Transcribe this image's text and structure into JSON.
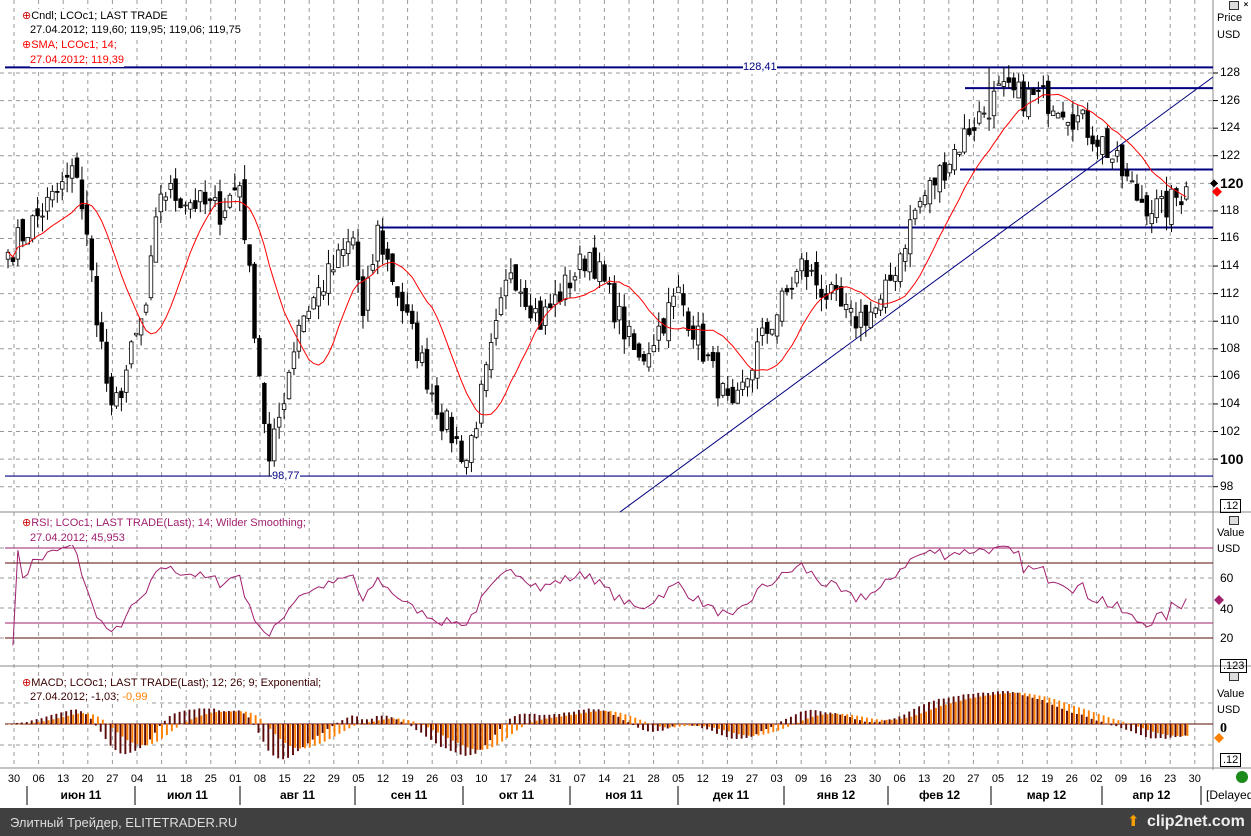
{
  "legend": {
    "candle_title": "Cndl; LCOc1; LAST TRADE",
    "candle_values": "27.04.2012; 119,60; 119,95; 119,06; 119,75",
    "sma_title": "SMA; LCOc1;  14;",
    "sma_values": "27.04.2012; 119,39",
    "rsi_title": "RSI; LCOc1; LAST TRADE(Last);  14; Wilder Smoothing;",
    "rsi_values": "27.04.2012; 45,953",
    "macd_title": "MACD; LCOc1; LAST TRADE(Last);  12; 26; 9; Exponential;",
    "macd_values": "27.04.2012; -1,03; ",
    "macd_signal": "-0,99"
  },
  "axis": {
    "price_label": "Price",
    "currency": "USD",
    "value_label": "Value",
    "price_ticks": [
      "128",
      "126",
      "124",
      "122",
      "120",
      "118",
      "116",
      "114",
      "112",
      "110",
      "108",
      "106",
      "104",
      "102",
      "100",
      "98"
    ],
    "rsi_ticks": [
      "60",
      "40",
      "20"
    ],
    "macd_tick": "0",
    "price_box": ".12",
    "rsi_box": ".123",
    "macd_box": ".12",
    "delayed": "[Delayed"
  },
  "levels": {
    "high_label": "128,41",
    "low_label": "98,77",
    "high": 128.41,
    "low": 98.77,
    "resist1": 126.9,
    "support1": 121.0,
    "support2": 116.8
  },
  "days": [
    "30",
    "06",
    "13",
    "20",
    "27",
    "04",
    "11",
    "18",
    "25",
    "01",
    "08",
    "15",
    "22",
    "29",
    "05",
    "12",
    "19",
    "26",
    "03",
    "10",
    "17",
    "24",
    "31",
    "07",
    "14",
    "21",
    "28",
    "05",
    "12",
    "19",
    "27",
    "03",
    "09",
    "16",
    "23",
    "30",
    "06",
    "13",
    "20",
    "27",
    "05",
    "12",
    "19",
    "26",
    "02",
    "09",
    "16",
    "23",
    "30"
  ],
  "months": [
    "июн 11",
    "июл 11",
    "авг 11",
    "сен 11",
    "окт 11",
    "ноя 11",
    "дек 11",
    "янв 12",
    "фев 12",
    "мар 12",
    "апр 12"
  ],
  "footer": {
    "left": "Элитный Трейдер, ELITETRADER.RU",
    "logo": "clip2net.com"
  },
  "colors": {
    "candle": "#000000",
    "sma": "#ff0000",
    "level": "#000080",
    "rsi": "#a0206e",
    "macd": "#5a0a0a",
    "signal": "#ff8000"
  },
  "chart_data": {
    "type": "candlestick",
    "trading_days": 240,
    "close_keypoints": [
      [
        0,
        115
      ],
      [
        14,
        121
      ],
      [
        21,
        103
      ],
      [
        28,
        111
      ],
      [
        31,
        119.5
      ],
      [
        43,
        118
      ],
      [
        47,
        120
      ],
      [
        53,
        99.5
      ],
      [
        59,
        110
      ],
      [
        70,
        116
      ],
      [
        72,
        110
      ],
      [
        75,
        116.5
      ],
      [
        80,
        111
      ],
      [
        88,
        103
      ],
      [
        93,
        100
      ],
      [
        97,
        106
      ],
      [
        102,
        114
      ],
      [
        108,
        110
      ],
      [
        118,
        115
      ],
      [
        128,
        107
      ],
      [
        136,
        112
      ],
      [
        147,
        103
      ],
      [
        152,
        108
      ],
      [
        161,
        114
      ],
      [
        171,
        110
      ],
      [
        177,
        111
      ],
      [
        184,
        118
      ],
      [
        195,
        124
      ],
      [
        201,
        126.5
      ],
      [
        213,
        126
      ],
      [
        222,
        123
      ],
      [
        229,
        119
      ],
      [
        234,
        118
      ],
      [
        239,
        119.6
      ]
    ],
    "ylim": [
      97,
      129.5
    ],
    "sma_period": 14,
    "rsi_period": 14,
    "rsi_levels": [
      80,
      70,
      30,
      20
    ],
    "macd": [
      12,
      26,
      9
    ]
  }
}
